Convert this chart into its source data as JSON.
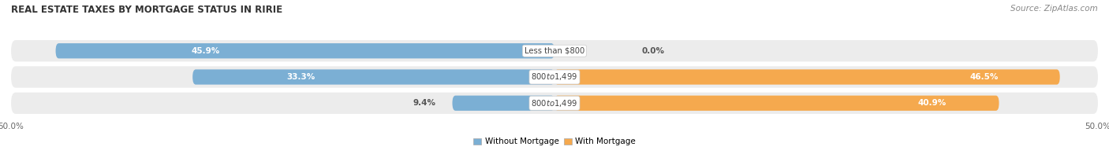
{
  "title": "REAL ESTATE TAXES BY MORTGAGE STATUS IN RIRIE",
  "source": "Source: ZipAtlas.com",
  "categories": [
    "Less than $800",
    "$800 to $1,499",
    "$800 to $1,499"
  ],
  "without_mortgage": [
    45.9,
    33.3,
    9.4
  ],
  "with_mortgage": [
    0.0,
    46.5,
    40.9
  ],
  "xlim": [
    -50,
    50
  ],
  "color_without": "#7bafd4",
  "color_with": "#f5a94e",
  "color_bg_bar": "#e0e0e0",
  "color_fig_bg": "#f7f7f7",
  "color_row_bg": "#efefef",
  "bar_height": 0.58,
  "legend_label_without": "Without Mortgage",
  "legend_label_with": "With Mortgage",
  "title_fontsize": 8.5,
  "source_fontsize": 7.5,
  "label_fontsize": 7.5,
  "category_fontsize": 7.2,
  "tick_fontsize": 7.5
}
